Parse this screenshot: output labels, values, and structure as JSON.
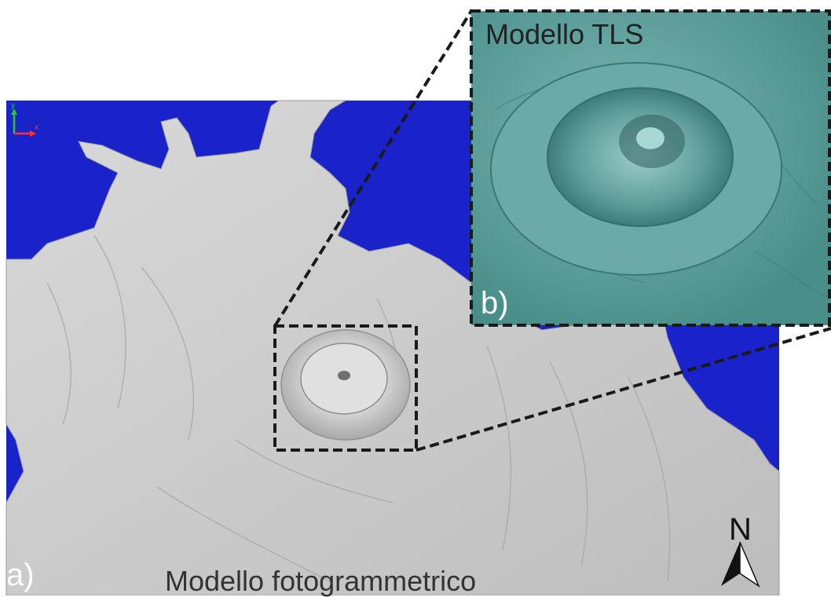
{
  "panel_a": {
    "letter": "a)",
    "title": "Modello fotogrammetrico",
    "sea_color": "#1a22c9",
    "terrain_color": "#c9c9c9"
  },
  "panel_b": {
    "letter": "b)",
    "title": "Modello TLS",
    "surface_color": "#5fa39f"
  },
  "north_arrow": {
    "letter": "N",
    "icon": "north-arrow-icon"
  },
  "axis_gizmo": {
    "y_label": "y",
    "x_label": "x",
    "y_color": "#22cc22",
    "x_color": "#ff3333"
  }
}
